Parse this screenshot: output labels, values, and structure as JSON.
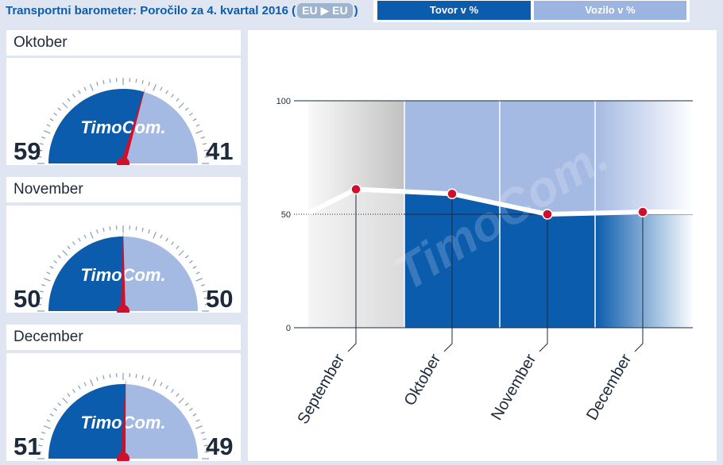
{
  "header": {
    "title": "Transportni barometer: Poročilo za 4. kvartal 2016",
    "paren_open": "(",
    "paren_close": ")",
    "route": "EU ▶ EU",
    "tabs": [
      {
        "label": "Tovor v %",
        "active": true
      },
      {
        "label": "Vozilo v %",
        "active": false
      }
    ]
  },
  "gauges": [
    {
      "month": "Oktober",
      "cargo": 59,
      "vehicle": 41
    },
    {
      "month": "November",
      "cargo": 50,
      "vehicle": 50
    },
    {
      "month": "December",
      "cargo": 51,
      "vehicle": 49
    }
  ],
  "gauge_logo": "TimoCom.",
  "watermark": "TimoCom.",
  "colors": {
    "cargo": "#0b5cad",
    "vehicle": "#a5bae3",
    "needle": "#d0102a",
    "point": "#d0102a",
    "background": "#dfe6f2"
  },
  "chart_data": {
    "type": "area",
    "categories": [
      "September",
      "Oktober",
      "November",
      "December"
    ],
    "series": [
      {
        "values": [
          61,
          59,
          50,
          51
        ]
      }
    ],
    "yticks": [
      0,
      50,
      100
    ],
    "ylim": [
      0,
      100
    ]
  }
}
